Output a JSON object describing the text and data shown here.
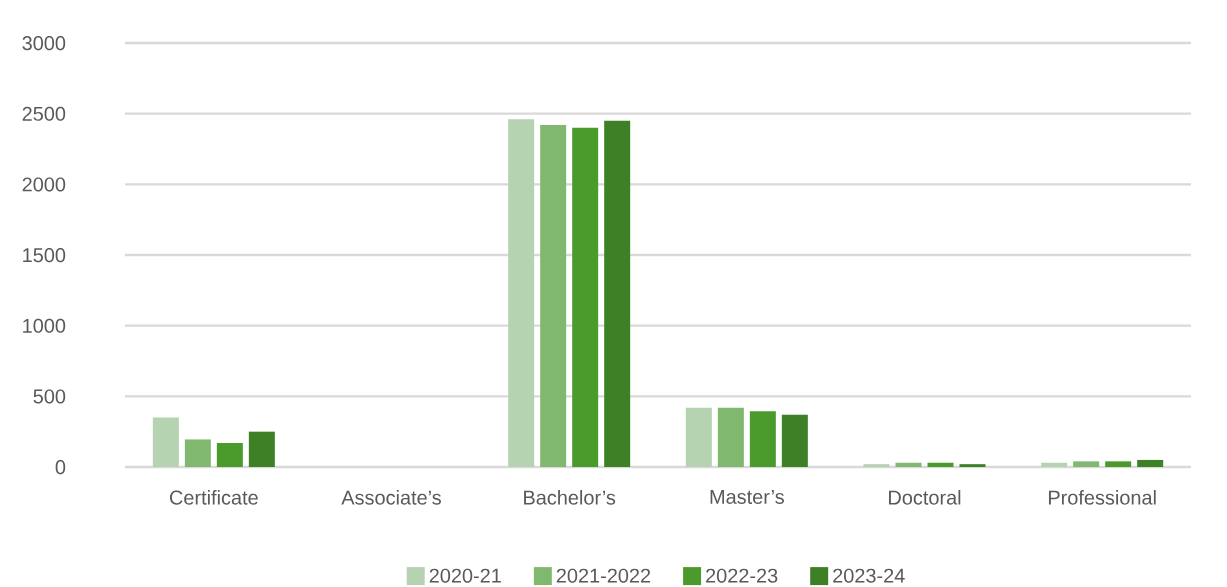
{
  "chart_data": {
    "type": "bar",
    "categories": [
      "Certificate",
      "Associate’s",
      "Bachelor’s",
      "Master’s",
      "Doctoral",
      "Professional"
    ],
    "series": [
      {
        "name": "2020-21",
        "color": "#b5d3b0",
        "values": [
          350,
          0,
          2460,
          420,
          20,
          30
        ]
      },
      {
        "name": "2021-2022",
        "color": "#80b870",
        "values": [
          195,
          0,
          2420,
          420,
          30,
          40
        ]
      },
      {
        "name": "2022-23",
        "color": "#4a9b2c",
        "values": [
          170,
          0,
          2400,
          395,
          30,
          40
        ]
      },
      {
        "name": "2023-24",
        "color": "#3d8025",
        "values": [
          250,
          0,
          2450,
          370,
          20,
          50
        ]
      }
    ],
    "ylim": [
      0,
      3000
    ],
    "yticks": [
      0,
      500,
      1000,
      1500,
      2000,
      2500,
      3000
    ],
    "grid": "y",
    "legend": "bottom"
  }
}
